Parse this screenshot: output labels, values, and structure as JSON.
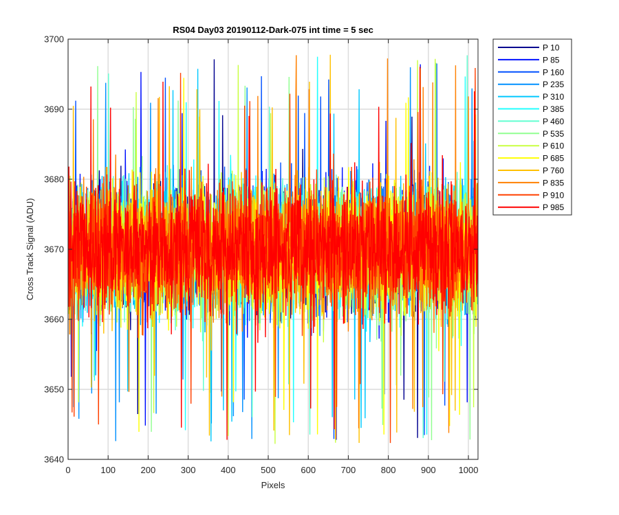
{
  "chart_data": {
    "type": "line",
    "title": "RS04 Day03 20190112-Dark-075 int time = 5 sec",
    "xlabel": "Pixels",
    "ylabel": "Cross Track Signal (ADU)",
    "xlim": [
      0,
      1024
    ],
    "ylim": [
      3640,
      3700
    ],
    "xticks": [
      0,
      100,
      200,
      300,
      400,
      500,
      600,
      700,
      800,
      900,
      1000
    ],
    "yticks": [
      3640,
      3650,
      3660,
      3670,
      3680,
      3690,
      3700
    ],
    "grid": true,
    "legend_position": "outside-top-right",
    "series_summary": {
      "mean": 3670,
      "typical_min": 3655,
      "typical_max": 3687,
      "observed_min": 3642,
      "observed_max": 3699,
      "num_points_per_series": 1024
    },
    "series": [
      {
        "name": "P 10",
        "color": "#00008f"
      },
      {
        "name": "P 85",
        "color": "#0010ff"
      },
      {
        "name": "P 160",
        "color": "#0050ff"
      },
      {
        "name": "P 235",
        "color": "#0090ff"
      },
      {
        "name": "P 310",
        "color": "#00c8ff"
      },
      {
        "name": "P 385",
        "color": "#20ffff"
      },
      {
        "name": "P 460",
        "color": "#60ffd0"
      },
      {
        "name": "P 535",
        "color": "#90ff90"
      },
      {
        "name": "P 610",
        "color": "#c8ff40"
      },
      {
        "name": "P 685",
        "color": "#ffff00"
      },
      {
        "name": "P 760",
        "color": "#ffc000"
      },
      {
        "name": "P 835",
        "color": "#ff8000"
      },
      {
        "name": "P 910",
        "color": "#ff4000"
      },
      {
        "name": "P 985",
        "color": "#ff0000"
      }
    ]
  }
}
